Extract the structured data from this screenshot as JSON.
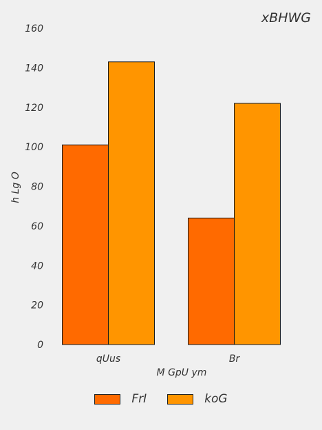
{
  "chart_data": {
    "type": "bar",
    "title": "xBHWG",
    "xlabel": "M GpU ym",
    "ylabel": "h Lg O",
    "categories": [
      "qUus",
      "Br"
    ],
    "series": [
      {
        "name": "FrI",
        "values": [
          101,
          64
        ],
        "color": "#ff6a00"
      },
      {
        "name": "koG",
        "values": [
          143,
          122
        ],
        "color": "#ff9500"
      }
    ],
    "ylim": [
      0,
      160
    ],
    "yticks": [
      0,
      20,
      40,
      60,
      80,
      100,
      120,
      140,
      160
    ],
    "grid": false,
    "legend_position": "bottom-center"
  }
}
